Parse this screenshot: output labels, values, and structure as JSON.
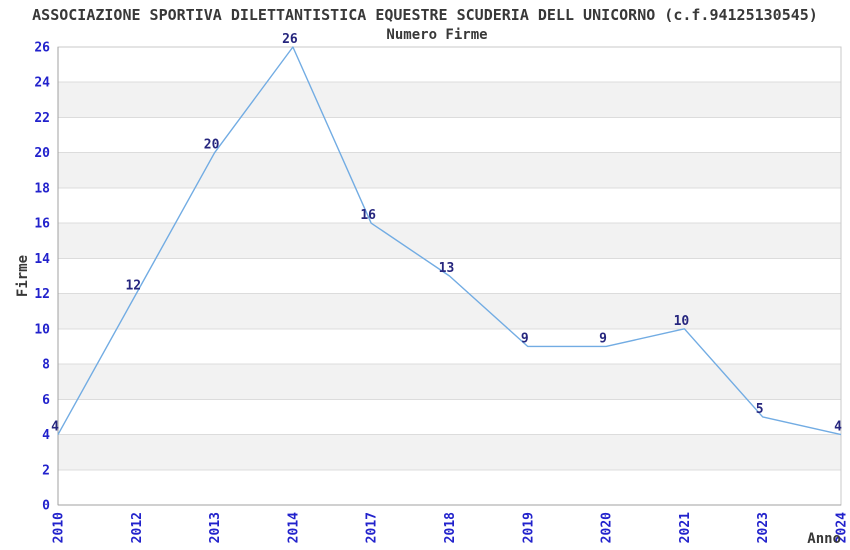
{
  "chart_data": {
    "type": "line",
    "title": "ASSOCIAZIONE SPORTIVA DILETTANTISTICA EQUESTRE SCUDERIA DELL UNICORNO (c.f.94125130545)",
    "subtitle": "Numero Firme",
    "xlabel": "Anno",
    "ylabel": "Firme",
    "categories": [
      "2010",
      "2012",
      "2013",
      "2014",
      "2017",
      "2018",
      "2019",
      "2020",
      "2021",
      "2023",
      "2024"
    ],
    "series": [
      {
        "name": "Numero Firme",
        "values": [
          4,
          12,
          20,
          26,
          16,
          13,
          9,
          9,
          10,
          5,
          4
        ]
      }
    ],
    "ylim": [
      0,
      26
    ],
    "ytick_step": 2,
    "grid": true,
    "band_fill": true,
    "legend": "none",
    "colors": {
      "line": "#72ACE3",
      "tick_label": "#2222CC",
      "data_label": "#26267E",
      "title": "#383838",
      "axis_label": "#383838",
      "gridline": "#DCDCDC",
      "band": "#F2F2F2",
      "axis": "#A0A0A0",
      "border": "#C9C9C9",
      "background": "#FFFFFF"
    }
  }
}
